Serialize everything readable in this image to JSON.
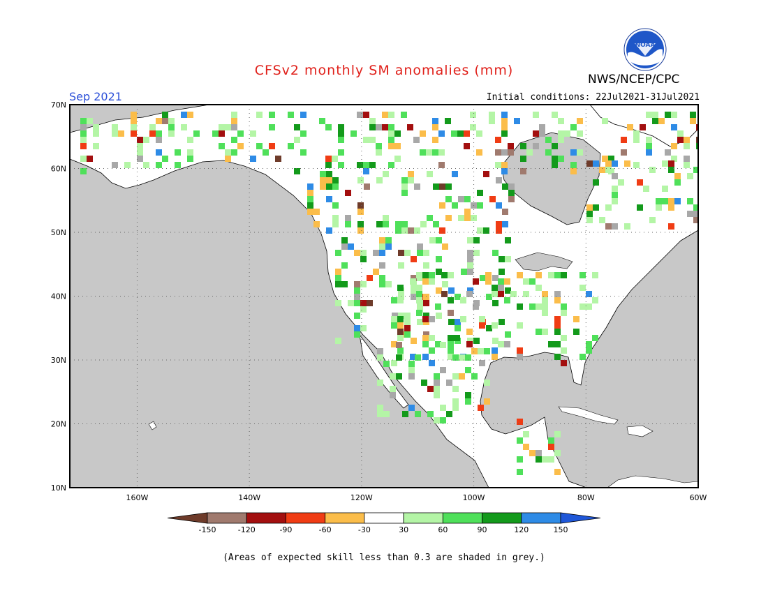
{
  "header": {
    "title": "CFSv2 monthly SM anomalies (mm)",
    "agency": "NWS/NCEP/CPC",
    "logo_text": "NOAA",
    "valid_month": "Sep 2021",
    "initial_conditions": "Initial conditions: 22Jul2021-31Jul2021"
  },
  "map": {
    "lat_labels": [
      "70N",
      "60N",
      "50N",
      "40N",
      "30N",
      "20N",
      "10N"
    ],
    "lon_labels": [
      "160W",
      "140W",
      "120W",
      "100W",
      "80W",
      "60W"
    ],
    "lat_range": [
      10,
      70
    ],
    "lon_range": [
      -172,
      -60
    ],
    "ocean_color": "#c8c8c8",
    "land_color": "#ffffff",
    "grid_lines": true
  },
  "legend": {
    "ticks": [
      "-150",
      "-120",
      "-90",
      "-60",
      "-30",
      "30",
      "60",
      "90",
      "120",
      "150"
    ],
    "colors": [
      "#6e3b2a",
      "#a07a6e",
      "#a30f0f",
      "#f03c14",
      "#fbbd4a",
      "#ffffff",
      "#b4f5a6",
      "#4fe05a",
      "#139a1b",
      "#2e8be6",
      "#1f57d8"
    ]
  },
  "footnote": "(Areas of expected skill less than 0.3 are shaded in grey.)"
}
